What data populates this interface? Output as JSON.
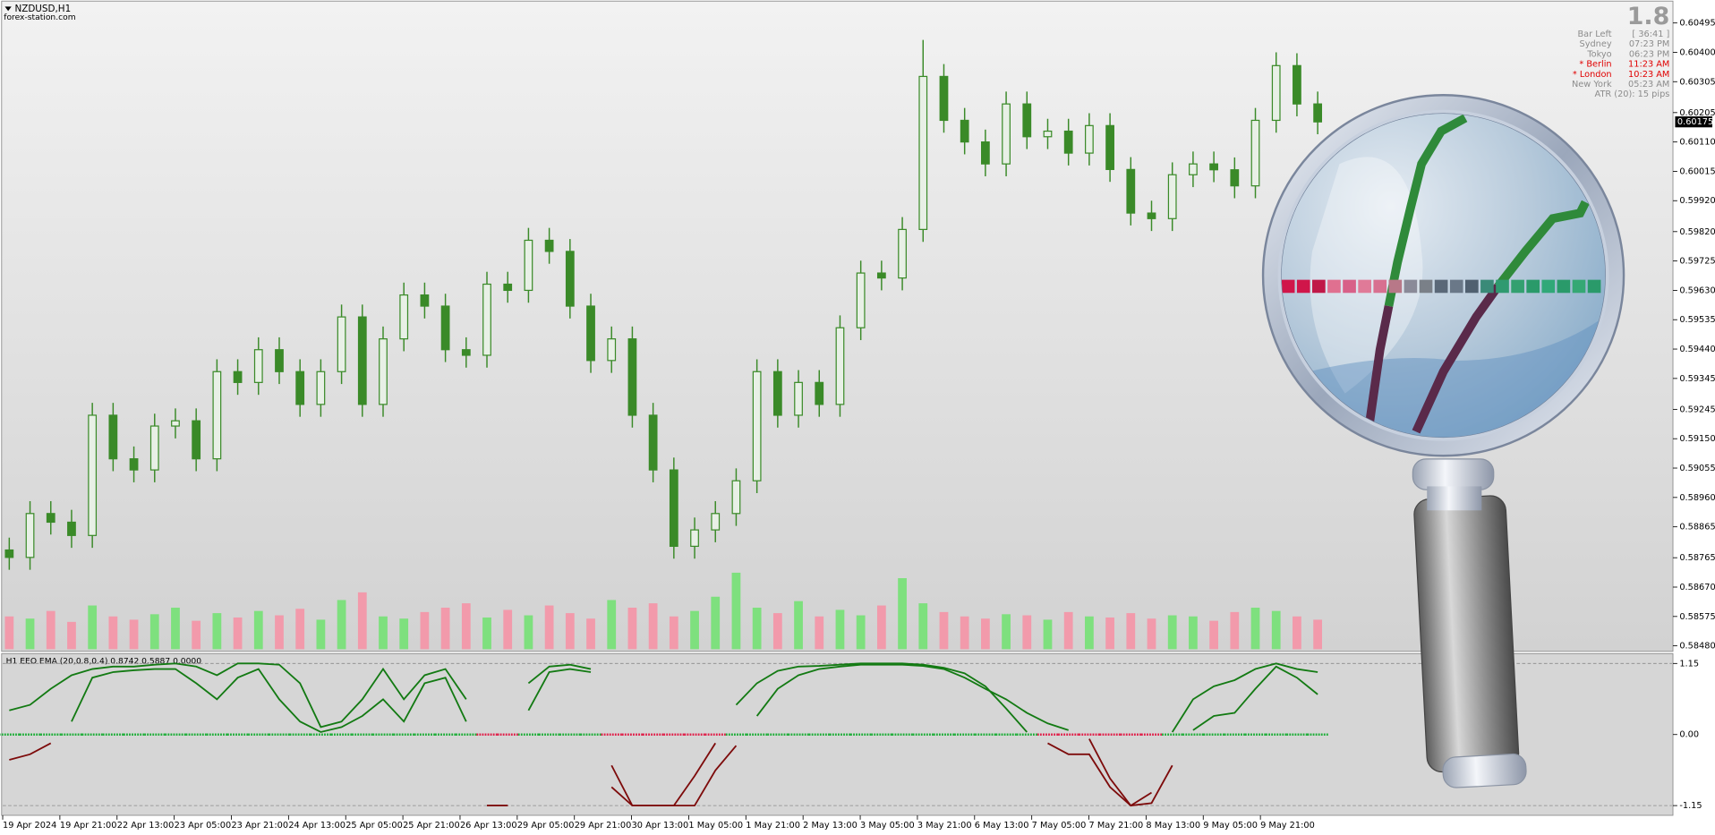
{
  "header": {
    "symbol": "NZDUSD,H1",
    "source": "forex-station.com"
  },
  "info_panel": {
    "spread": "1.8",
    "rows": [
      {
        "label": "Bar Left",
        "value": "[ 36:41 ]",
        "color": "#8c8c8c"
      },
      {
        "label": "Sydney",
        "value": "07:23 PM",
        "color": "#8c8c8c"
      },
      {
        "label": "Tokyo",
        "value": "06:23 PM",
        "color": "#8c8c8c"
      },
      {
        "label": "* Berlin",
        "value": "11:23 AM",
        "color": "#e00000"
      },
      {
        "label": "* London",
        "value": "10:23 AM",
        "color": "#e00000"
      },
      {
        "label": "New York",
        "value": "05:23 AM",
        "color": "#8c8c8c"
      }
    ],
    "atr": "ATR (20): 15 pips"
  },
  "chart_data": [
    {
      "type": "candlestick",
      "color": "#3a8a28",
      "volume_up_color": "#7ee07e",
      "volume_down_color": "#f29aab",
      "open": [
        0.5879,
        0.58766,
        0.58908,
        0.5888,
        0.58837,
        0.59226,
        0.59085,
        0.59049,
        0.59191,
        0.59208,
        0.59085,
        0.59367,
        0.59332,
        0.59438,
        0.59367,
        0.59261,
        0.59367,
        0.59544,
        0.59261,
        0.59473,
        0.59615,
        0.59579,
        0.59438,
        0.5942,
        0.5965,
        0.5963,
        0.59792,
        0.59756,
        0.59579,
        0.59403,
        0.59473,
        0.59226,
        0.59049,
        0.58802,
        0.58855,
        0.58908,
        0.59014,
        0.59367,
        0.59226,
        0.59332,
        0.59261,
        0.59509,
        0.59686,
        0.5967,
        0.59827,
        0.60322,
        0.6018,
        0.6011,
        0.60039,
        0.60233,
        0.60127,
        0.60145,
        0.60074,
        0.60163,
        0.60021,
        0.5988,
        0.59862,
        0.60004,
        0.60039,
        0.6002,
        0.59968,
        0.6018,
        0.60357,
        0.60233
      ],
      "high": [
        0.5883,
        0.58948,
        0.58948,
        0.5892,
        0.59266,
        0.59266,
        0.59125,
        0.59231,
        0.59248,
        0.59248,
        0.59407,
        0.59407,
        0.59478,
        0.59478,
        0.59407,
        0.59407,
        0.59584,
        0.59584,
        0.59513,
        0.59655,
        0.59655,
        0.59619,
        0.59478,
        0.5969,
        0.5969,
        0.59832,
        0.59832,
        0.59796,
        0.59619,
        0.59513,
        0.59513,
        0.59266,
        0.59089,
        0.58895,
        0.58948,
        0.59054,
        0.59407,
        0.59407,
        0.59372,
        0.59372,
        0.59549,
        0.59726,
        0.59726,
        0.59867,
        0.6044,
        0.60362,
        0.6022,
        0.6015,
        0.60273,
        0.60273,
        0.60185,
        0.60185,
        0.60203,
        0.60203,
        0.60061,
        0.5992,
        0.60044,
        0.60079,
        0.60079,
        0.6006,
        0.6022,
        0.604,
        0.60397,
        0.60273
      ],
      "low": [
        0.58726,
        0.58726,
        0.5884,
        0.58797,
        0.58797,
        0.59045,
        0.59009,
        0.59009,
        0.59151,
        0.59045,
        0.59045,
        0.59292,
        0.59292,
        0.59327,
        0.59221,
        0.59221,
        0.59327,
        0.59221,
        0.59221,
        0.59433,
        0.59539,
        0.59398,
        0.5938,
        0.5938,
        0.5959,
        0.5959,
        0.59716,
        0.59539,
        0.59363,
        0.59363,
        0.59186,
        0.59009,
        0.58762,
        0.58762,
        0.58815,
        0.58868,
        0.58974,
        0.59186,
        0.59186,
        0.59221,
        0.59221,
        0.59469,
        0.5963,
        0.5963,
        0.59787,
        0.6014,
        0.6007,
        0.59999,
        0.59999,
        0.60087,
        0.60087,
        0.60034,
        0.60034,
        0.59981,
        0.5984,
        0.59822,
        0.59822,
        0.59964,
        0.5998,
        0.59928,
        0.59928,
        0.6014,
        0.60193,
        0.60135
      ],
      "close": [
        0.58766,
        0.58908,
        0.5888,
        0.58837,
        0.59226,
        0.59085,
        0.59049,
        0.59191,
        0.59208,
        0.59085,
        0.59367,
        0.59332,
        0.59438,
        0.59367,
        0.59261,
        0.59367,
        0.59544,
        0.59261,
        0.59473,
        0.59615,
        0.59579,
        0.59438,
        0.5942,
        0.5965,
        0.5963,
        0.59792,
        0.59756,
        0.59579,
        0.59403,
        0.59473,
        0.59226,
        0.59049,
        0.58802,
        0.58855,
        0.58908,
        0.59014,
        0.59367,
        0.59226,
        0.59332,
        0.59261,
        0.59509,
        0.59686,
        0.5967,
        0.59827,
        0.60322,
        0.6018,
        0.6011,
        0.60039,
        0.60233,
        0.60127,
        0.60145,
        0.60074,
        0.60163,
        0.60021,
        0.5988,
        0.59862,
        0.60004,
        0.60039,
        0.6002,
        0.59968,
        0.6018,
        0.60357,
        0.60233,
        0.60175
      ],
      "volume": [
        30,
        28,
        35,
        25,
        40,
        30,
        27,
        32,
        38,
        26,
        33,
        29,
        35,
        31,
        37,
        27,
        45,
        52,
        30,
        28,
        34,
        38,
        42,
        29,
        36,
        31,
        40,
        33,
        28,
        45,
        38,
        42,
        30,
        35,
        48,
        70,
        38,
        33,
        44,
        30,
        36,
        31,
        40,
        65,
        42,
        34,
        30,
        28,
        32,
        31,
        27,
        34,
        30,
        29,
        33,
        28,
        31,
        30,
        26,
        34,
        38,
        35,
        30,
        27
      ],
      "ylim": [
        0.58462,
        0.60541
      ],
      "yticks": [
        {
          "value": 0.60495,
          "label": "0.60495"
        },
        {
          "value": 0.604,
          "label": "0.60400"
        },
        {
          "value": 0.60305,
          "label": "0.60305"
        },
        {
          "value": 0.60205,
          "label": "0.60205"
        },
        {
          "value": 0.6011,
          "label": "0.60110"
        },
        {
          "value": 0.60015,
          "label": "0.60015"
        },
        {
          "value": 0.5992,
          "label": "0.59920"
        },
        {
          "value": 0.5982,
          "label": "0.59820"
        },
        {
          "value": 0.59725,
          "label": "0.59725"
        },
        {
          "value": 0.5963,
          "label": "0.59630"
        },
        {
          "value": 0.59535,
          "label": "0.59535"
        },
        {
          "value": 0.5944,
          "label": "0.59440"
        },
        {
          "value": 0.59345,
          "label": "0.59345"
        },
        {
          "value": 0.59245,
          "label": "0.59245"
        },
        {
          "value": 0.5915,
          "label": "0.59150"
        },
        {
          "value": 0.59055,
          "label": "0.59055"
        },
        {
          "value": 0.5896,
          "label": "0.58960"
        },
        {
          "value": 0.58865,
          "label": "0.58865"
        },
        {
          "value": 0.58765,
          "label": "0.58765"
        },
        {
          "value": 0.5867,
          "label": "0.58670"
        },
        {
          "value": 0.58575,
          "label": "0.58575"
        },
        {
          "value": 0.5848,
          "label": "0.58480"
        }
      ],
      "current_price": {
        "value": 0.60175,
        "label": "0.60175"
      },
      "xtick_labels": [
        "19 Apr 2024",
        "19 Apr 21:00",
        "22 Apr 13:00",
        "23 Apr 05:00",
        "23 Apr 21:00",
        "24 Apr 13:00",
        "25 Apr 05:00",
        "25 Apr 21:00",
        "26 Apr 13:00",
        "29 Apr 05:00",
        "29 Apr 21:00",
        "30 Apr 13:00",
        "1 May 05:00",
        "1 May 21:00",
        "2 May 13:00",
        "3 May 05:00",
        "3 May 21:00",
        "6 May 13:00",
        "7 May 05:00",
        "7 May 21:00",
        "8 May 13:00",
        "9 May 05:00",
        "9 May 21:00"
      ]
    },
    {
      "type": "line",
      "title": "H1 EEO EMA (20,0.8,0.4) 0.8742 0.5887 0.0000",
      "color_above": "#137a13",
      "color_below": "#7d0b0b",
      "zero_above_color": "#1fae3a",
      "zero_below_color": "#e0204a",
      "series": [
        {
          "values": [
            0.39,
            0.48,
            0.74,
            0.96,
            1.06,
            1.1,
            1.1,
            1.13,
            1.15,
            1.1,
            0.96,
            1.15,
            1.15,
            1.13,
            0.83,
            0.12,
            0.21,
            0.57,
            1.06,
            0.57,
            0.96,
            1.06,
            0.57,
            -1.15,
            -1.15,
            0.83,
            1.1,
            1.13,
            1.06,
            -0.5,
            -1.15,
            -1.15,
            -1.15,
            -0.67,
            -0.14,
            0.48,
            0.83,
            1.03,
            1.1,
            1.11,
            1.13,
            1.15,
            1.15,
            1.15,
            1.13,
            1.08,
            0.99,
            0.78,
            0.42,
            0.04,
            -0.14,
            -0.32,
            -0.32,
            -0.85,
            -1.15,
            -0.94,
            0.04,
            0.57,
            0.78,
            0.88,
            1.06,
            1.15,
            1.06,
            1.01
          ]
        },
        {
          "values": [
            -0.41,
            -0.32,
            -0.14,
            0.21,
            0.92,
            1.01,
            1.04,
            1.06,
            1.06,
            0.83,
            0.57,
            0.92,
            1.06,
            0.57,
            0.21,
            0.04,
            0.12,
            0.3,
            0.57,
            0.21,
            0.83,
            0.92,
            0.21,
            -1.15,
            -1.15,
            0.39,
            1.01,
            1.06,
            1.01,
            -0.85,
            -1.15,
            -1.15,
            -1.15,
            -1.15,
            -0.58,
            -0.18,
            0.3,
            0.74,
            0.96,
            1.06,
            1.1,
            1.13,
            1.13,
            1.13,
            1.11,
            1.06,
            0.92,
            0.74,
            0.57,
            0.35,
            0.18,
            0.07,
            -0.07,
            -0.71,
            -1.15,
            -1.11,
            -0.5,
            0.07,
            0.3,
            0.35,
            0.74,
            1.1,
            0.92,
            0.65
          ]
        }
      ],
      "ylim": [
        -1.29,
        1.31
      ],
      "yticks": [
        1.15,
        {
          "value": 0,
          "label": "0.00"
        },
        -1.15
      ]
    }
  ]
}
